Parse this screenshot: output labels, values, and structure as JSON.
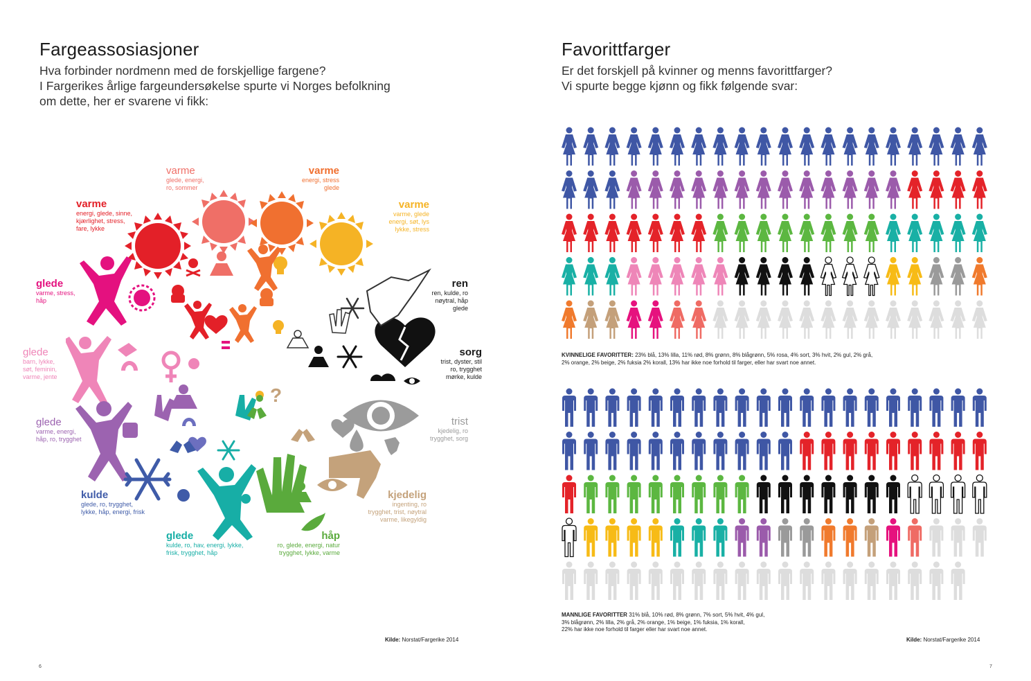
{
  "left": {
    "title": "Fargeassosiasjoner",
    "intro": [
      "Hva forbinder nordmenn med de forskjellige fargene?",
      "I Fargerikes årlige fargeundersøkelse spurte vi Norges befolkning",
      "om dette, her er svarene vi fikk:"
    ],
    "labels": [
      {
        "key": "varme1",
        "title": "varme",
        "lines": [
          "energi, glede, sinne,",
          "kjærlighet, stress,",
          "fare, lykke"
        ],
        "color": "#e32028"
      },
      {
        "key": "varme2",
        "title": "varme",
        "lines": [
          "glede, energi,",
          "ro, sommer"
        ],
        "color": "#ef6f67"
      },
      {
        "key": "varme3",
        "title": "varme",
        "lines": [
          "energi, stress",
          "glede"
        ],
        "color": "#f07030"
      },
      {
        "key": "varme4",
        "title": "varme",
        "lines": [
          "varme, glede",
          "energi, søt, lys",
          "lykke, stress"
        ],
        "color": "#f5b325"
      },
      {
        "key": "ren",
        "title": "ren",
        "lines": [
          "ren, kulde, ro",
          "nøytral, håp",
          "glede"
        ],
        "color": "#1a1a1a"
      },
      {
        "key": "sorg",
        "title": "sorg",
        "lines": [
          "trist, dyster, stil",
          "ro, trygghet",
          "mørke, kulde"
        ],
        "color": "#1a1a1a"
      },
      {
        "key": "trist",
        "title": "trist",
        "lines": [
          "kjedelig, ro",
          "trygghet, sorg"
        ],
        "color": "#9b9b9b"
      },
      {
        "key": "kjedelig",
        "title": "kjedelig",
        "lines": [
          "ingenting, ro",
          "trygghet, trist, nøytral",
          "varme, likegyldig"
        ],
        "color": "#c4a27b"
      },
      {
        "key": "hap",
        "title": "håp",
        "lines": [
          "ro, glede, energi, natur",
          "trygghet, lykke, varme"
        ],
        "color": "#5aaa3c"
      },
      {
        "key": "glede-teal",
        "title": "glede",
        "lines": [
          "kulde, ro, hav, energi, lykke,",
          "frisk, trygghet, håp"
        ],
        "color": "#17aea6"
      },
      {
        "key": "kulde",
        "title": "kulde",
        "lines": [
          "glede, ro, trygghet,",
          "lykke, håp, energi, frisk"
        ],
        "color": "#3f5ba8"
      },
      {
        "key": "glede-purple",
        "title": "glede",
        "lines": [
          "varme, energi,",
          "håp, ro, trygghet"
        ],
        "color": "#9c63b0"
      },
      {
        "key": "glede-pink",
        "title": "glede",
        "lines": [
          "barn, lykke,",
          "søt, feminin,",
          "varme, jente"
        ],
        "color": "#ef85b8"
      },
      {
        "key": "glede-magenta",
        "title": "glede",
        "lines": [
          "varme, stress,",
          "håp"
        ],
        "color": "#e4117f"
      }
    ],
    "source_label": "Kilde:",
    "source_text": " Norstat/Fargerike 2014",
    "page_number": "6"
  },
  "right": {
    "title": "Favorittfarger",
    "intro": [
      "Er det forskjell på kvinner og menns favorittfarger?",
      "Vi spurte begge kjønn og fikk følgende svar:"
    ],
    "women_caption_bold": "KVINNELIGE FAVORITTER:",
    "women_caption_lines": [
      " 23% blå, 13% lilla, 11% rød, 8% grønn, 8% blågrønn, 5% rosa, 4% sort, 3% hvit, 2% gul, 2% grå,",
      "2% orange, 2% beige, 2% fuksia  2% korall, 13% har ikke noe forhold til farger, eller har svart noe annet."
    ],
    "men_caption_bold": "MANNLIGE FAVORITTER",
    "men_caption_lines": [
      " 31% blå, 10% rød, 8% grønn, 7% sort, 5% hvit, 4% gul,",
      "3% blågrønn, 2% lilla, 2% grå, 2% orange, 1% beige, 1% fuksia, 1% korall,",
      "22% har ikke noe forhold til farger eller har svart noe annet."
    ],
    "source_label": "Kilde:",
    "source_text": " Norstat/Fargerike 2014",
    "page_number": "7"
  },
  "chart_data": [
    {
      "type": "pictogram",
      "group": "women",
      "per_row": 20,
      "total": 100,
      "categories": [
        {
          "name": "blå",
          "value": 23,
          "color": "#3f57a5"
        },
        {
          "name": "lilla",
          "value": 13,
          "color": "#9b5bab"
        },
        {
          "name": "rød",
          "value": 11,
          "color": "#e42329"
        },
        {
          "name": "grønn",
          "value": 8,
          "color": "#5cb741"
        },
        {
          "name": "blågrønn",
          "value": 8,
          "color": "#19b0a5"
        },
        {
          "name": "rosa",
          "value": 5,
          "color": "#ee86b8"
        },
        {
          "name": "sort",
          "value": 4,
          "color": "#111111"
        },
        {
          "name": "hvit",
          "value": 3,
          "color": "#ffffff"
        },
        {
          "name": "gul",
          "value": 2,
          "color": "#f7bb16"
        },
        {
          "name": "grå",
          "value": 2,
          "color": "#9a9a9a"
        },
        {
          "name": "orange",
          "value": 2,
          "color": "#f07a2d"
        },
        {
          "name": "beige",
          "value": 2,
          "color": "#c4a07a"
        },
        {
          "name": "fuksia",
          "value": 2,
          "color": "#e6127e"
        },
        {
          "name": "korall",
          "value": 2,
          "color": "#ef6b64"
        },
        {
          "name": "ikke noe forhold / annet",
          "value": 13,
          "color": "#dddddd"
        }
      ]
    },
    {
      "type": "pictogram",
      "group": "men",
      "per_row": 20,
      "total": 100,
      "categories": [
        {
          "name": "blå",
          "value": 31,
          "color": "#3f57a5"
        },
        {
          "name": "rød",
          "value": 10,
          "color": "#e42329"
        },
        {
          "name": "grønn",
          "value": 8,
          "color": "#5cb741"
        },
        {
          "name": "sort",
          "value": 7,
          "color": "#111111"
        },
        {
          "name": "hvit",
          "value": 5,
          "color": "#ffffff"
        },
        {
          "name": "gul",
          "value": 4,
          "color": "#f7bb16"
        },
        {
          "name": "blågrønn",
          "value": 3,
          "color": "#19b0a5"
        },
        {
          "name": "lilla",
          "value": 2,
          "color": "#9b5bab"
        },
        {
          "name": "grå",
          "value": 2,
          "color": "#9a9a9a"
        },
        {
          "name": "orange",
          "value": 2,
          "color": "#f07a2d"
        },
        {
          "name": "beige",
          "value": 1,
          "color": "#c4a07a"
        },
        {
          "name": "fuksia",
          "value": 1,
          "color": "#e6127e"
        },
        {
          "name": "korall",
          "value": 1,
          "color": "#ef6b64"
        },
        {
          "name": "ikke noe forhold / annet",
          "value": 22,
          "color": "#dddddd"
        }
      ]
    }
  ]
}
